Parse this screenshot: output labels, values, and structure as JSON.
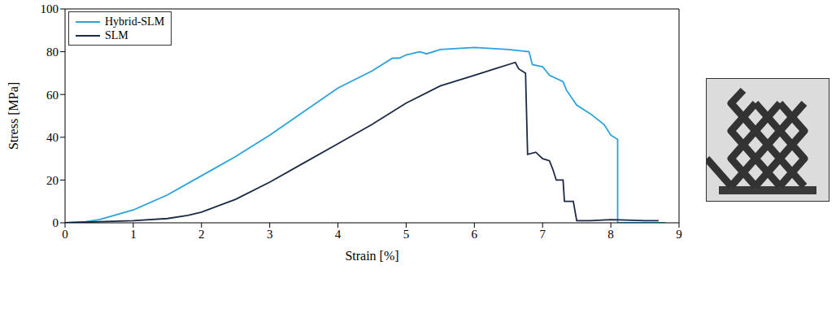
{
  "chart_data": {
    "type": "line",
    "x_label": "Strain [%]",
    "y_label": "Stress [MPa]",
    "xlim": [
      0,
      9
    ],
    "xticks": [
      0,
      1,
      2,
      3,
      4,
      5,
      6,
      7,
      8,
      9
    ],
    "ylim": [
      0,
      100
    ],
    "yticks": [
      0,
      20,
      40,
      60,
      80,
      100
    ],
    "legend": "upper left",
    "grid": false,
    "series": [
      {
        "name": "Hybrid-SLM",
        "color": "#2aa3dc",
        "x": [
          0,
          0.3,
          0.5,
          1,
          1.5,
          2,
          2.5,
          3,
          3.5,
          4,
          4.5,
          4.8,
          4.9,
          5,
          5.2,
          5.3,
          5.5,
          6,
          6.5,
          6.8,
          6.85,
          7,
          7.1,
          7.3,
          7.35,
          7.5,
          7.7,
          7.9,
          8,
          8.1,
          8.1,
          8.8
        ],
        "values": [
          0,
          0.5,
          1.5,
          6,
          13,
          22,
          31,
          41,
          52,
          63,
          71,
          77,
          77,
          78.5,
          80,
          79,
          81,
          82,
          81,
          80,
          74,
          73,
          69,
          66,
          62,
          55,
          51,
          46,
          41,
          39,
          0,
          0
        ]
      },
      {
        "name": "SLM",
        "color": "#1b2a44",
        "x": [
          0,
          1,
          1.5,
          1.8,
          2,
          2.5,
          3,
          3.5,
          4,
          4.5,
          5,
          5.5,
          6,
          6.3,
          6.6,
          6.65,
          6.75,
          6.78,
          6.9,
          7,
          7.1,
          7.15,
          7.2,
          7.3,
          7.32,
          7.45,
          7.5,
          7.7,
          8,
          8.5,
          8.7
        ],
        "values": [
          0,
          1,
          2,
          3.5,
          5,
          11,
          19,
          28,
          37,
          46,
          56,
          64,
          69,
          72,
          75,
          72,
          70,
          32,
          33,
          30,
          29,
          25,
          20,
          20,
          10,
          10,
          1,
          1,
          1.5,
          1,
          1
        ]
      }
    ]
  }
}
